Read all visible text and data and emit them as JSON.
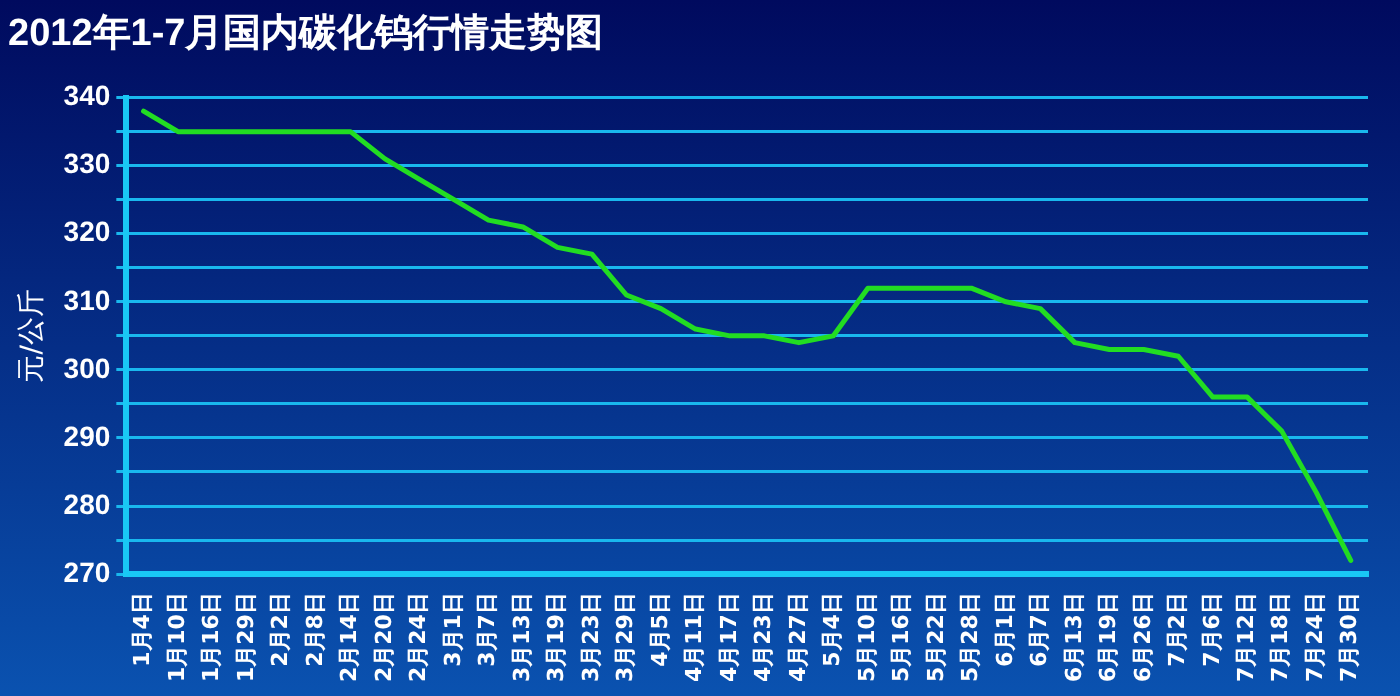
{
  "chart_data": {
    "type": "line",
    "title": "2012年1-7月国内碳化钨行情走势图",
    "ylabel": "元/公斤",
    "categories": [
      "1月4日",
      "1月10日",
      "1月16日",
      "1月29日",
      "2月2日",
      "2月8日",
      "2月14日",
      "2月20日",
      "2月24日",
      "3月1日",
      "3月7日",
      "3月13日",
      "3月19日",
      "3月23日",
      "3月29日",
      "4月5日",
      "4月11日",
      "4月17日",
      "4月23日",
      "4月27日",
      "5月4日",
      "5月10日",
      "5月16日",
      "5月22日",
      "5月28日",
      "6月1日",
      "6月7日",
      "6月13日",
      "6月19日",
      "6月26日",
      "7月2日",
      "7月6日",
      "7月12日",
      "7月18日",
      "7月24日",
      "7月30日"
    ],
    "series": [
      {
        "color": "#22dd22",
        "values": [
          338,
          335,
          335,
          335,
          335,
          335,
          335,
          331,
          328,
          325,
          322,
          321,
          318,
          317,
          311,
          309,
          306,
          305,
          305,
          304,
          305,
          312,
          312,
          312,
          312,
          310,
          309,
          304,
          303,
          303,
          302,
          296,
          296,
          291,
          282,
          272
        ]
      }
    ],
    "ylim": [
      270,
      340
    ],
    "yticks": [
      270,
      {
        "value": 275,
        "label": null
      },
      280,
      {
        "value": 285,
        "label": null
      },
      290,
      {
        "value": 295,
        "label": null
      },
      300,
      {
        "value": 305,
        "label": null
      },
      310,
      {
        "value": 315,
        "label": null
      },
      320,
      {
        "value": 325,
        "label": null
      },
      330,
      {
        "value": 335,
        "label": null
      },
      340
    ],
    "grid": "y",
    "legend": false,
    "marker": "none",
    "line_style": "solid"
  }
}
